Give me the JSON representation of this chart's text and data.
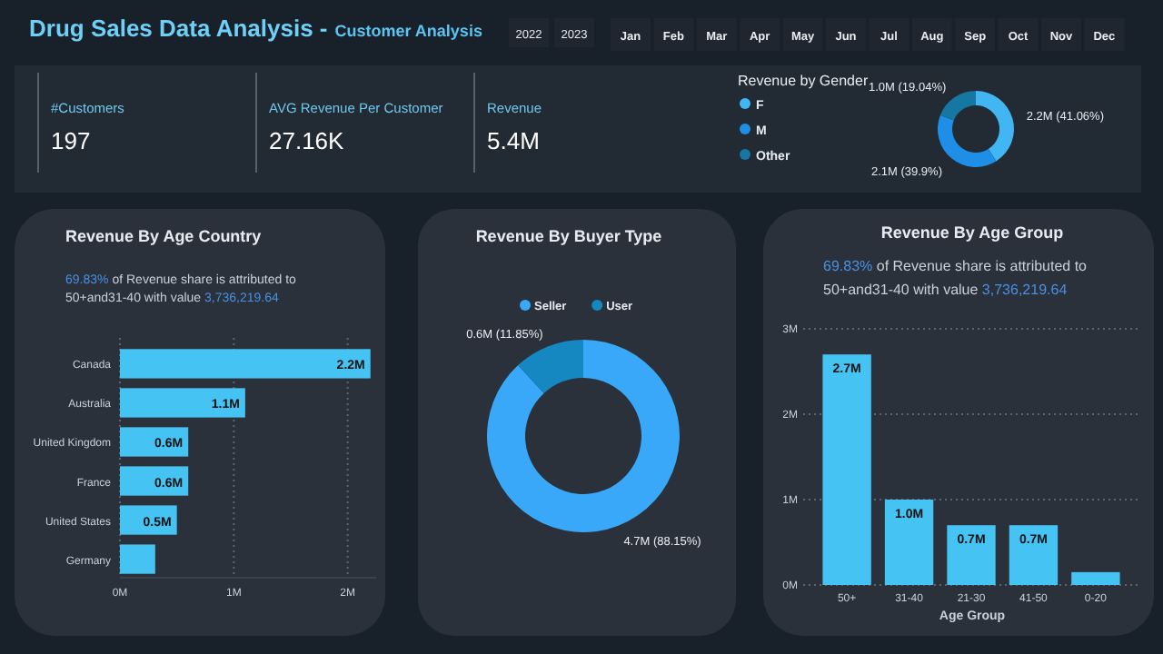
{
  "chart_data": [
    {
      "type": "other",
      "title": "Drug Sales Data Analysis -",
      "subtitle": "Customer Analysis",
      "annotations": [
        "2022",
        "2023",
        "Jan",
        "Feb",
        "Mar",
        "Apr",
        "May",
        "Jun",
        "Jul",
        "Aug",
        "Sep",
        "Oct",
        "Nov",
        "Dec",
        "#Customers",
        "197",
        "AVG Revenue Per Customer",
        "27.16K",
        "Revenue",
        "5.4M"
      ]
    },
    {
      "type": "donut",
      "title": "Revenue by Gender",
      "categories": [
        "F",
        "M",
        "Other"
      ],
      "values": [
        41.06,
        39.9,
        19.04
      ],
      "value_labels": [
        "2.2M (41.06%)",
        "2.1M (39.9%)",
        "1.0M (19.04%)"
      ],
      "colors": [
        "#41b6f3",
        "#1e8ee6",
        "#1677a3"
      ],
      "legend": "left"
    },
    {
      "type": "bar",
      "orientation": "horizontal",
      "title": "Revenue By Age Country",
      "annotations": [
        "69.83% of Revenue share is attributed to 50+and31-40 with value 3,736,219.64"
      ],
      "categories": [
        "Canada",
        "Australia",
        "United Kingdom",
        "France",
        "United States",
        "Germany"
      ],
      "values": [
        2.2,
        1.1,
        0.6,
        0.6,
        0.5,
        0.31
      ],
      "value_labels": [
        "2.2M",
        "1.1M",
        "0.6M",
        "0.6M",
        "0.5M",
        null
      ],
      "color": "#45c3f2",
      "xlim": [
        0,
        2.25
      ],
      "xticks": [
        {
          "value": 0,
          "label": "0M"
        },
        {
          "value": 1,
          "label": "1M"
        },
        {
          "value": 2,
          "label": "2M"
        }
      ],
      "grid": "x"
    },
    {
      "type": "donut",
      "title": "Revenue By Buyer Type",
      "categories": [
        "Seller",
        "User"
      ],
      "values": [
        88.15,
        11.85
      ],
      "value_labels": [
        "4.7M (88.15%)",
        "0.6M (11.85%)"
      ],
      "colors": [
        "#3aa8f8",
        "#1588c2"
      ],
      "legend": "top"
    },
    {
      "type": "bar",
      "title": "Revenue By Age Group",
      "annotations": [
        "69.83% of Revenue share is attributed to 50+and31-40 with value 3,736,219.64"
      ],
      "xlabel": "Age Group",
      "categories": [
        "50+",
        "31-40",
        "21-30",
        "41-50",
        "0-20"
      ],
      "values": [
        2.7,
        1.0,
        0.7,
        0.7,
        0.15
      ],
      "value_labels": [
        "2.7M",
        "1.0M",
        "0.7M",
        "0.7M",
        null
      ],
      "color": "#45c3f2",
      "ylim": [
        0,
        3
      ],
      "yticks": [
        {
          "value": 0,
          "label": "0M"
        },
        {
          "value": 1,
          "label": "1M"
        },
        {
          "value": 2,
          "label": "2M"
        },
        {
          "value": 3,
          "label": "3M"
        }
      ],
      "grid": "y"
    }
  ]
}
